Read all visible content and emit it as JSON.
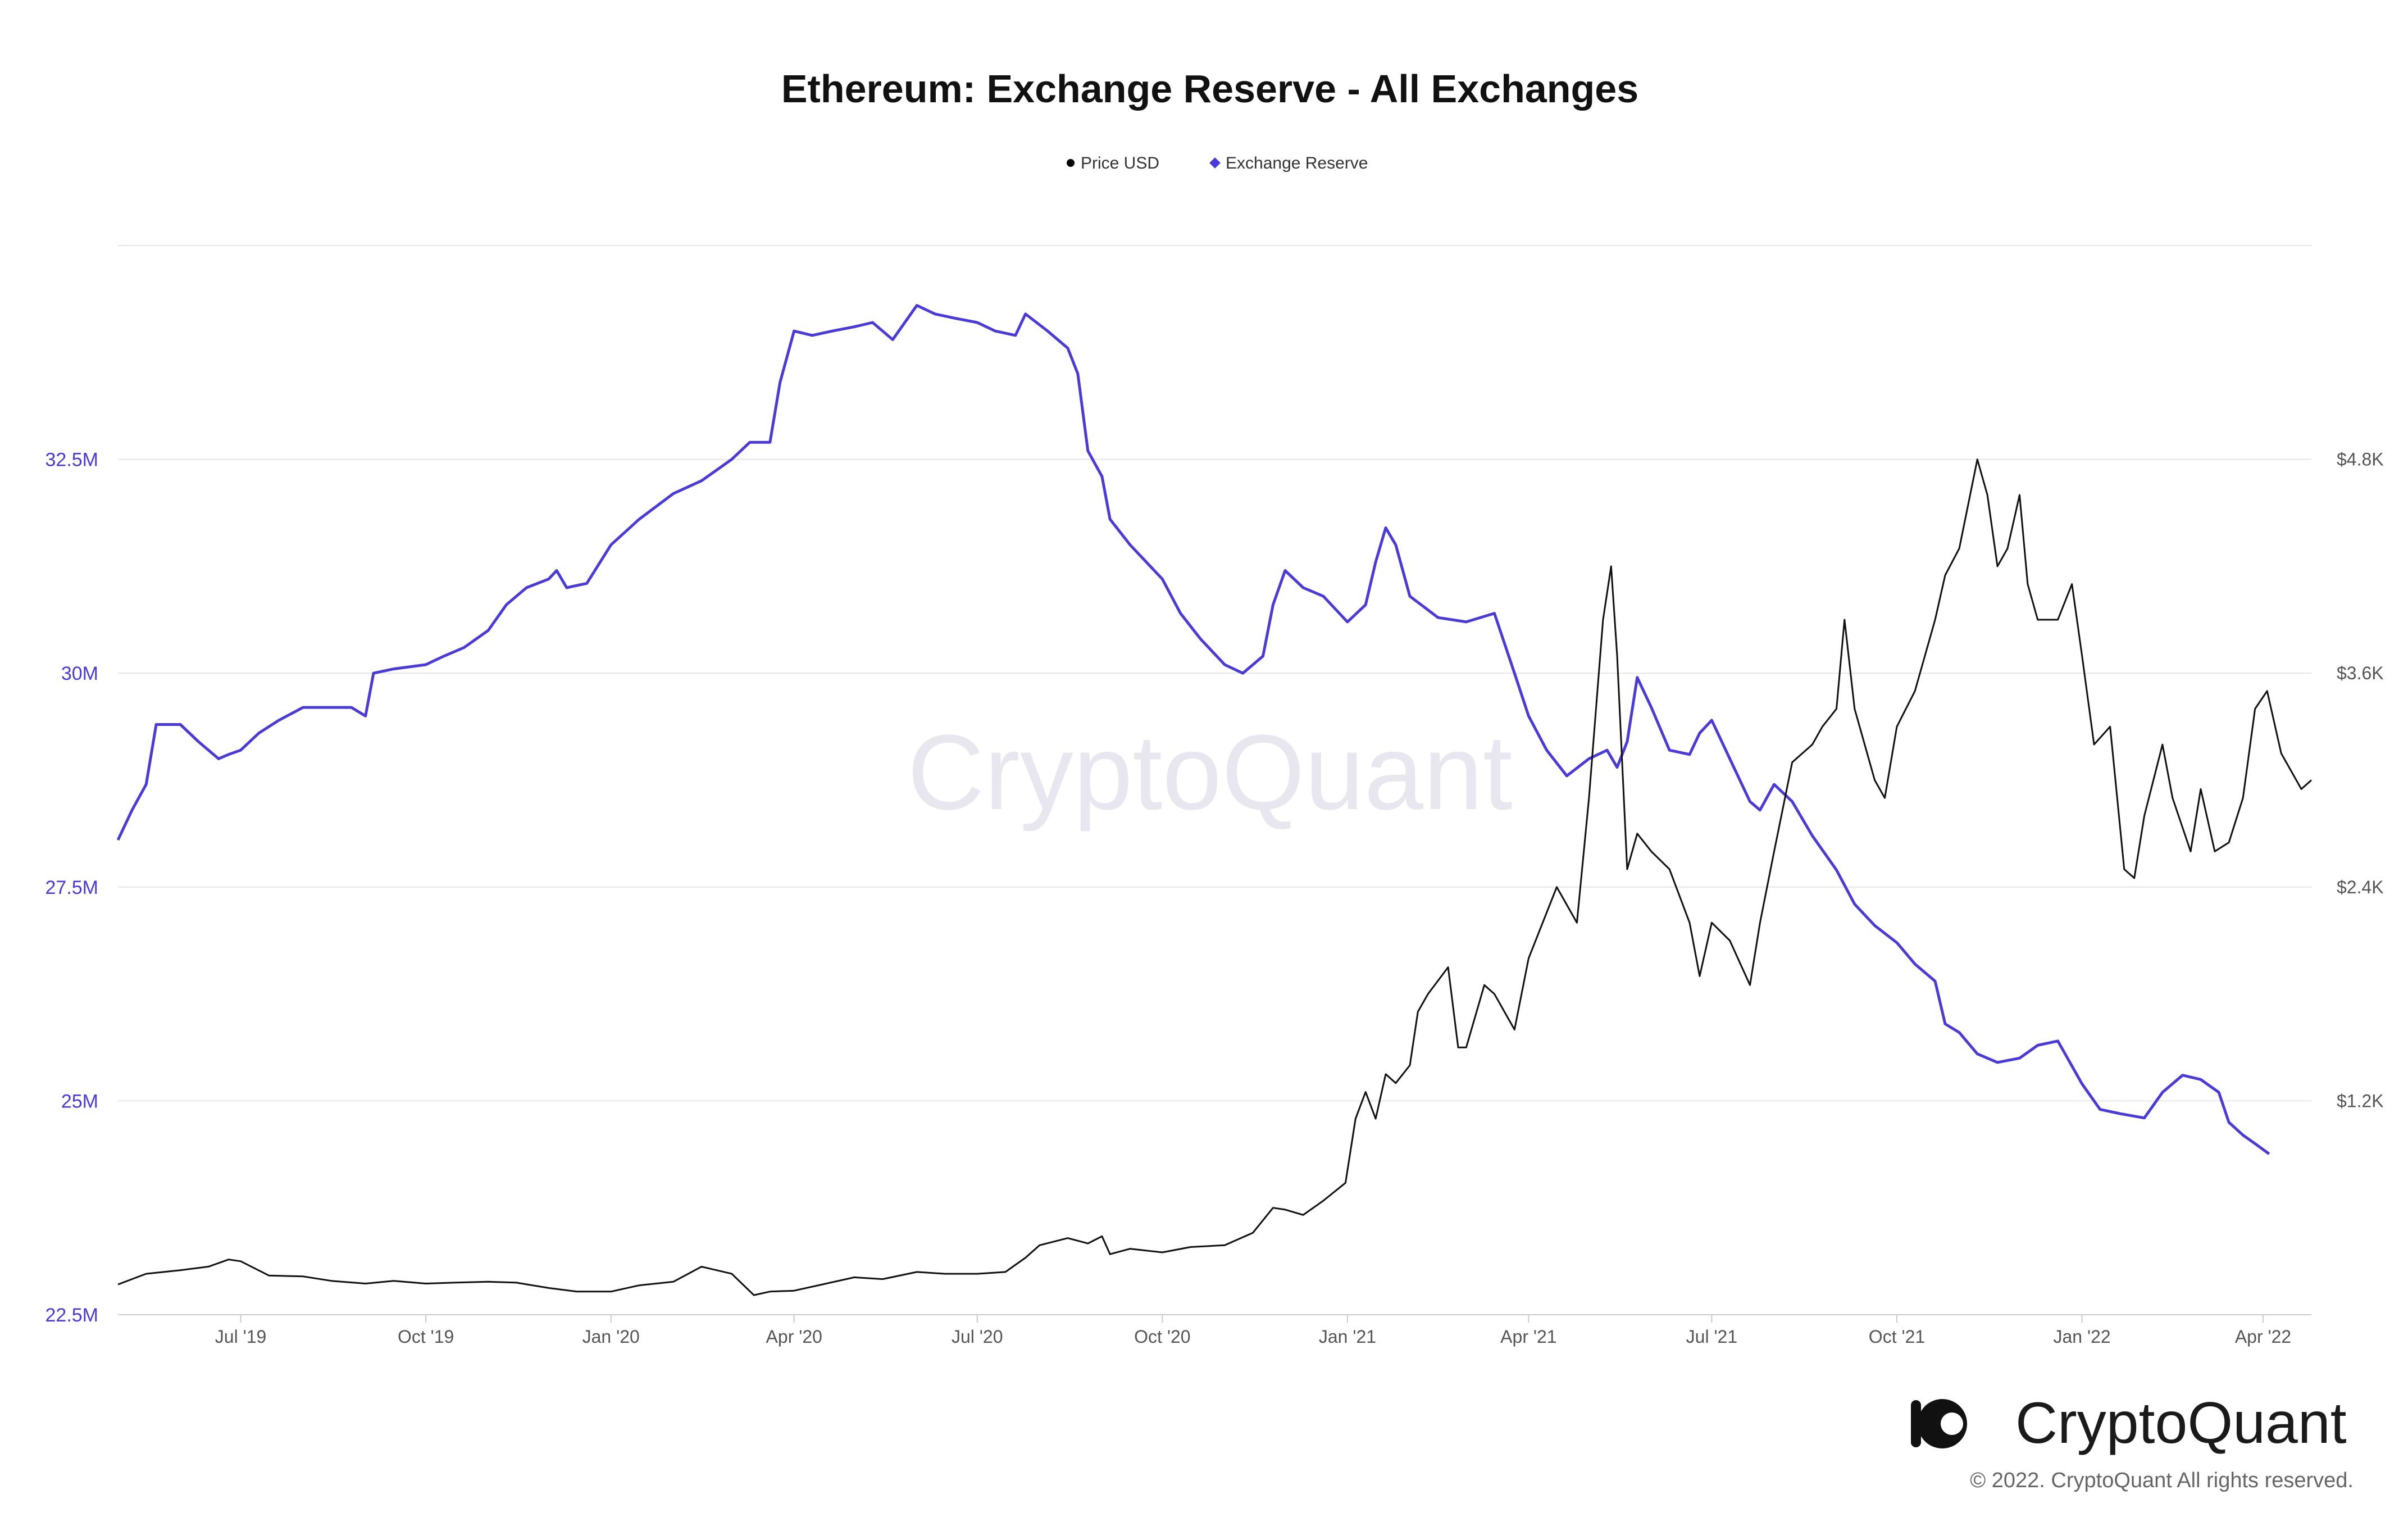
{
  "chart_data": {
    "type": "line",
    "title": "Ethereum: Exchange Reserve - All Exchanges",
    "legend": {
      "placement": "top-center",
      "items": [
        {
          "label": "Price USD",
          "marker": "circle",
          "color": "#000000"
        },
        {
          "label": "Exchange Reserve",
          "marker": "diamond",
          "color": "#4a3ad8"
        }
      ]
    },
    "grid": true,
    "x_axis": {
      "range": [
        "2019-05-01",
        "2022-04-25"
      ],
      "ticks": [
        {
          "date": "2019-07-01",
          "label": "Jul '19"
        },
        {
          "date": "2019-10-01",
          "label": "Oct '19"
        },
        {
          "date": "2020-01-01",
          "label": "Jan '20"
        },
        {
          "date": "2020-04-01",
          "label": "Apr '20"
        },
        {
          "date": "2020-07-01",
          "label": "Jul '20"
        },
        {
          "date": "2020-10-01",
          "label": "Oct '20"
        },
        {
          "date": "2021-01-01",
          "label": "Jan '21"
        },
        {
          "date": "2021-04-01",
          "label": "Apr '21"
        },
        {
          "date": "2021-07-01",
          "label": "Jul '21"
        },
        {
          "date": "2021-10-01",
          "label": "Oct '21"
        },
        {
          "date": "2022-01-01",
          "label": "Jan '22"
        },
        {
          "date": "2022-04-01",
          "label": "Apr '22"
        }
      ]
    },
    "y_left": {
      "range": [
        22500000,
        35000000
      ],
      "ticks": [
        {
          "value": 22500000,
          "label": "22.5M"
        },
        {
          "value": 25000000,
          "label": "25M"
        },
        {
          "value": 27500000,
          "label": "27.5M"
        },
        {
          "value": 30000000,
          "label": "30M"
        },
        {
          "value": 32500000,
          "label": "32.5M"
        }
      ],
      "color": "#4a3ad8"
    },
    "y_right": {
      "range": [
        0,
        6000
      ],
      "ticks": [
        {
          "value": 1200,
          "label": "$1.2K"
        },
        {
          "value": 2400,
          "label": "$2.4K"
        },
        {
          "value": 3600,
          "label": "$3.6K"
        },
        {
          "value": 4800,
          "label": "$4.8K"
        }
      ],
      "color": "#555555"
    },
    "series": [
      {
        "name": "Exchange Reserve",
        "axis": "left",
        "color": "#4a3ad8",
        "points": [
          [
            "2019-05-01",
            28050000
          ],
          [
            "2019-05-08",
            28400000
          ],
          [
            "2019-05-15",
            28700000
          ],
          [
            "2019-05-20",
            29400000
          ],
          [
            "2019-06-01",
            29400000
          ],
          [
            "2019-06-10",
            29200000
          ],
          [
            "2019-06-20",
            29000000
          ],
          [
            "2019-06-25",
            29050000
          ],
          [
            "2019-07-01",
            29100000
          ],
          [
            "2019-07-10",
            29300000
          ],
          [
            "2019-07-20",
            29450000
          ],
          [
            "2019-08-01",
            29600000
          ],
          [
            "2019-08-15",
            29600000
          ],
          [
            "2019-08-25",
            29600000
          ],
          [
            "2019-09-01",
            29500000
          ],
          [
            "2019-09-05",
            30000000
          ],
          [
            "2019-09-15",
            30050000
          ],
          [
            "2019-10-01",
            30100000
          ],
          [
            "2019-10-10",
            30200000
          ],
          [
            "2019-10-20",
            30300000
          ],
          [
            "2019-11-01",
            30500000
          ],
          [
            "2019-11-10",
            30800000
          ],
          [
            "2019-11-20",
            31000000
          ],
          [
            "2019-12-01",
            31100000
          ],
          [
            "2019-12-05",
            31200000
          ],
          [
            "2019-12-10",
            31000000
          ],
          [
            "2019-12-20",
            31050000
          ],
          [
            "2020-01-01",
            31500000
          ],
          [
            "2020-01-15",
            31800000
          ],
          [
            "2020-02-01",
            32100000
          ],
          [
            "2020-02-15",
            32250000
          ],
          [
            "2020-03-01",
            32500000
          ],
          [
            "2020-03-10",
            32700000
          ],
          [
            "2020-03-20",
            32700000
          ],
          [
            "2020-03-25",
            33400000
          ],
          [
            "2020-04-01",
            34000000
          ],
          [
            "2020-04-10",
            33950000
          ],
          [
            "2020-04-20",
            34000000
          ],
          [
            "2020-05-01",
            34050000
          ],
          [
            "2020-05-10",
            34100000
          ],
          [
            "2020-05-20",
            33900000
          ],
          [
            "2020-06-01",
            34300000
          ],
          [
            "2020-06-10",
            34200000
          ],
          [
            "2020-06-20",
            34150000
          ],
          [
            "2020-07-01",
            34100000
          ],
          [
            "2020-07-10",
            34000000
          ],
          [
            "2020-07-20",
            33950000
          ],
          [
            "2020-07-25",
            34200000
          ],
          [
            "2020-08-05",
            34000000
          ],
          [
            "2020-08-15",
            33800000
          ],
          [
            "2020-08-20",
            33500000
          ],
          [
            "2020-08-25",
            32600000
          ],
          [
            "2020-09-01",
            32300000
          ],
          [
            "2020-09-05",
            31800000
          ],
          [
            "2020-09-15",
            31500000
          ],
          [
            "2020-09-25",
            31250000
          ],
          [
            "2020-10-01",
            31100000
          ],
          [
            "2020-10-10",
            30700000
          ],
          [
            "2020-10-20",
            30400000
          ],
          [
            "2020-11-01",
            30100000
          ],
          [
            "2020-11-10",
            30000000
          ],
          [
            "2020-11-20",
            30200000
          ],
          [
            "2020-11-25",
            30800000
          ],
          [
            "2020-12-01",
            31200000
          ],
          [
            "2020-12-10",
            31000000
          ],
          [
            "2020-12-20",
            30900000
          ],
          [
            "2021-01-01",
            30600000
          ],
          [
            "2021-01-10",
            30800000
          ],
          [
            "2021-01-15",
            31300000
          ],
          [
            "2021-01-20",
            31700000
          ],
          [
            "2021-01-25",
            31500000
          ],
          [
            "2021-02-01",
            30900000
          ],
          [
            "2021-02-15",
            30650000
          ],
          [
            "2021-03-01",
            30600000
          ],
          [
            "2021-03-15",
            30700000
          ],
          [
            "2021-03-25",
            30000000
          ],
          [
            "2021-04-01",
            29500000
          ],
          [
            "2021-04-10",
            29100000
          ],
          [
            "2021-04-20",
            28800000
          ],
          [
            "2021-05-01",
            29000000
          ],
          [
            "2021-05-10",
            29100000
          ],
          [
            "2021-05-15",
            28900000
          ],
          [
            "2021-05-20",
            29200000
          ],
          [
            "2021-05-25",
            29950000
          ],
          [
            "2021-06-01",
            29600000
          ],
          [
            "2021-06-10",
            29100000
          ],
          [
            "2021-06-20",
            29050000
          ],
          [
            "2021-06-25",
            29300000
          ],
          [
            "2021-07-01",
            29450000
          ],
          [
            "2021-07-10",
            29000000
          ],
          [
            "2021-07-20",
            28500000
          ],
          [
            "2021-07-25",
            28400000
          ],
          [
            "2021-08-01",
            28700000
          ],
          [
            "2021-08-10",
            28500000
          ],
          [
            "2021-08-20",
            28100000
          ],
          [
            "2021-09-01",
            27700000
          ],
          [
            "2021-09-10",
            27300000
          ],
          [
            "2021-09-20",
            27050000
          ],
          [
            "2021-10-01",
            26850000
          ],
          [
            "2021-10-10",
            26600000
          ],
          [
            "2021-10-20",
            26400000
          ],
          [
            "2021-10-25",
            25900000
          ],
          [
            "2021-11-01",
            25800000
          ],
          [
            "2021-11-10",
            25550000
          ],
          [
            "2021-11-20",
            25450000
          ],
          [
            "2021-12-01",
            25500000
          ],
          [
            "2021-12-10",
            25650000
          ],
          [
            "2021-12-20",
            25700000
          ],
          [
            "2022-01-01",
            25200000
          ],
          [
            "2022-01-10",
            24900000
          ],
          [
            "2022-01-20",
            24850000
          ],
          [
            "2022-02-01",
            24800000
          ],
          [
            "2022-02-10",
            25100000
          ],
          [
            "2022-02-20",
            25300000
          ],
          [
            "2022-03-01",
            25250000
          ],
          [
            "2022-03-10",
            25100000
          ],
          [
            "2022-03-15",
            24750000
          ],
          [
            "2022-03-22",
            24600000
          ],
          [
            "2022-03-28",
            24500000
          ],
          [
            "2022-04-04",
            24380000
          ]
        ]
      },
      {
        "name": "Price USD",
        "axis": "right",
        "color": "#000000",
        "points": [
          [
            "2019-05-01",
            170
          ],
          [
            "2019-05-15",
            230
          ],
          [
            "2019-06-01",
            250
          ],
          [
            "2019-06-15",
            270
          ],
          [
            "2019-06-25",
            310
          ],
          [
            "2019-07-01",
            300
          ],
          [
            "2019-07-15",
            220
          ],
          [
            "2019-08-01",
            215
          ],
          [
            "2019-08-15",
            190
          ],
          [
            "2019-09-01",
            175
          ],
          [
            "2019-09-15",
            190
          ],
          [
            "2019-10-01",
            175
          ],
          [
            "2019-10-15",
            180
          ],
          [
            "2019-11-01",
            185
          ],
          [
            "2019-11-15",
            180
          ],
          [
            "2019-12-01",
            150
          ],
          [
            "2019-12-15",
            130
          ],
          [
            "2020-01-01",
            130
          ],
          [
            "2020-01-15",
            165
          ],
          [
            "2020-02-01",
            185
          ],
          [
            "2020-02-15",
            270
          ],
          [
            "2020-03-01",
            230
          ],
          [
            "2020-03-12",
            110
          ],
          [
            "2020-03-20",
            130
          ],
          [
            "2020-04-01",
            135
          ],
          [
            "2020-04-15",
            170
          ],
          [
            "2020-05-01",
            210
          ],
          [
            "2020-05-15",
            200
          ],
          [
            "2020-06-01",
            240
          ],
          [
            "2020-06-15",
            230
          ],
          [
            "2020-07-01",
            230
          ],
          [
            "2020-07-15",
            240
          ],
          [
            "2020-07-25",
            320
          ],
          [
            "2020-08-01",
            390
          ],
          [
            "2020-08-15",
            430
          ],
          [
            "2020-08-25",
            400
          ],
          [
            "2020-09-01",
            440
          ],
          [
            "2020-09-05",
            340
          ],
          [
            "2020-09-15",
            370
          ],
          [
            "2020-10-01",
            350
          ],
          [
            "2020-10-15",
            380
          ],
          [
            "2020-11-01",
            390
          ],
          [
            "2020-11-15",
            460
          ],
          [
            "2020-11-25",
            600
          ],
          [
            "2020-12-01",
            590
          ],
          [
            "2020-12-10",
            560
          ],
          [
            "2020-12-20",
            640
          ],
          [
            "2020-12-31",
            740
          ],
          [
            "2021-01-05",
            1100
          ],
          [
            "2021-01-10",
            1250
          ],
          [
            "2021-01-15",
            1100
          ],
          [
            "2021-01-20",
            1350
          ],
          [
            "2021-01-25",
            1300
          ],
          [
            "2021-02-01",
            1400
          ],
          [
            "2021-02-05",
            1700
          ],
          [
            "2021-02-10",
            1800
          ],
          [
            "2021-02-20",
            1950
          ],
          [
            "2021-02-25",
            1500
          ],
          [
            "2021-03-01",
            1500
          ],
          [
            "2021-03-10",
            1850
          ],
          [
            "2021-03-15",
            1800
          ],
          [
            "2021-03-25",
            1600
          ],
          [
            "2021-04-01",
            2000
          ],
          [
            "2021-04-15",
            2400
          ],
          [
            "2021-04-25",
            2200
          ],
          [
            "2021-05-01",
            2900
          ],
          [
            "2021-05-08",
            3900
          ],
          [
            "2021-05-12",
            4200
          ],
          [
            "2021-05-15",
            3700
          ],
          [
            "2021-05-20",
            2500
          ],
          [
            "2021-05-25",
            2700
          ],
          [
            "2021-06-01",
            2600
          ],
          [
            "2021-06-10",
            2500
          ],
          [
            "2021-06-20",
            2200
          ],
          [
            "2021-06-25",
            1900
          ],
          [
            "2021-07-01",
            2200
          ],
          [
            "2021-07-10",
            2100
          ],
          [
            "2021-07-20",
            1850
          ],
          [
            "2021-07-25",
            2200
          ],
          [
            "2021-08-01",
            2600
          ],
          [
            "2021-08-10",
            3100
          ],
          [
            "2021-08-20",
            3200
          ],
          [
            "2021-08-25",
            3300
          ],
          [
            "2021-09-01",
            3400
          ],
          [
            "2021-09-05",
            3900
          ],
          [
            "2021-09-10",
            3400
          ],
          [
            "2021-09-20",
            3000
          ],
          [
            "2021-09-25",
            2900
          ],
          [
            "2021-10-01",
            3300
          ],
          [
            "2021-10-10",
            3500
          ],
          [
            "2021-10-20",
            3900
          ],
          [
            "2021-10-25",
            4150
          ],
          [
            "2021-11-01",
            4300
          ],
          [
            "2021-11-10",
            4800
          ],
          [
            "2021-11-15",
            4600
          ],
          [
            "2021-11-20",
            4200
          ],
          [
            "2021-11-25",
            4300
          ],
          [
            "2021-12-01",
            4600
          ],
          [
            "2021-12-05",
            4100
          ],
          [
            "2021-12-10",
            3900
          ],
          [
            "2021-12-20",
            3900
          ],
          [
            "2021-12-27",
            4100
          ],
          [
            "2022-01-01",
            3700
          ],
          [
            "2022-01-07",
            3200
          ],
          [
            "2022-01-15",
            3300
          ],
          [
            "2022-01-22",
            2500
          ],
          [
            "2022-01-27",
            2450
          ],
          [
            "2022-02-01",
            2800
          ],
          [
            "2022-02-10",
            3200
          ],
          [
            "2022-02-15",
            2900
          ],
          [
            "2022-02-24",
            2600
          ],
          [
            "2022-03-01",
            2950
          ],
          [
            "2022-03-08",
            2600
          ],
          [
            "2022-03-15",
            2650
          ],
          [
            "2022-03-22",
            2900
          ],
          [
            "2022-03-28",
            3400
          ],
          [
            "2022-04-03",
            3500
          ],
          [
            "2022-04-10",
            3150
          ],
          [
            "2022-04-15",
            3050
          ],
          [
            "2022-04-20",
            2950
          ],
          [
            "2022-04-25",
            3000
          ]
        ]
      }
    ]
  },
  "watermark": "CryptoQuant",
  "branding": {
    "logo_text": "CryptoQuant",
    "copyright": "© 2022. CryptoQuant All rights reserved."
  }
}
